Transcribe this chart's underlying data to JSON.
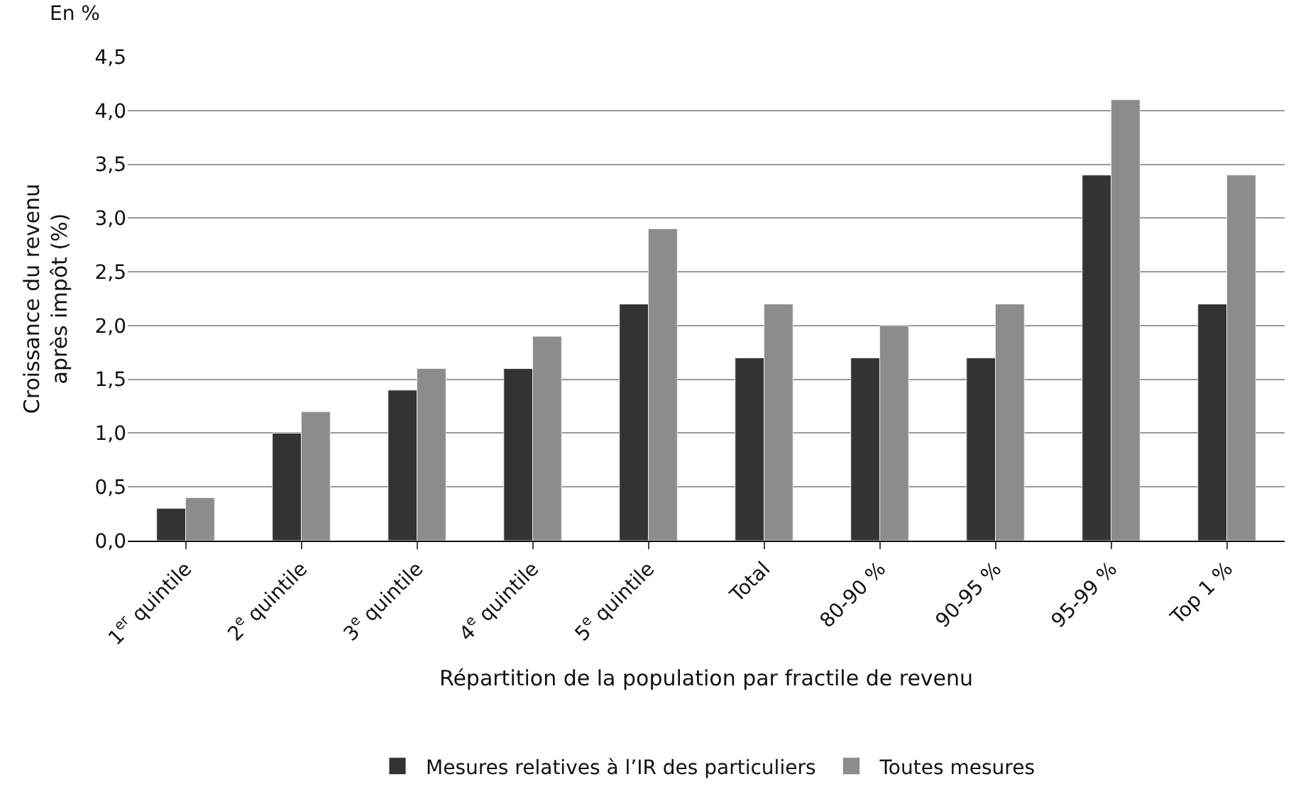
{
  "chart_data": {
    "type": "bar",
    "xlabel": "Répartition de la population par fractile de revenu",
    "ylabel": "Croissance du revenu après impôt (%)",
    "annotations": [
      "En %"
    ],
    "categories": [
      "1$^{er}$ quintile",
      "2$^{e}$ quintile",
      "3$^{e}$ quintile",
      "4$^{e}$ quintile",
      "5$^{e}$ quintile",
      "Total",
      "80-90 %",
      "90-95 %",
      "95-99 %",
      "Top 1 %"
    ],
    "series": [
      {
        "name": "Mesures relatives à l’IR des particuliers",
        "color": "#333333",
        "values": [
          0.3,
          1.0,
          1.4,
          1.6,
          2.2,
          1.7,
          1.7,
          1.7,
          3.4,
          2.2
        ]
      },
      {
        "name": "Toutes mesures",
        "color": "#8c8c8c",
        "values": [
          0.4,
          1.2,
          1.6,
          1.9,
          2.9,
          2.2,
          2.0,
          2.2,
          4.1,
          3.4
        ]
      }
    ],
    "ylim": [
      0,
      4.5
    ],
    "yticks": [
      {
        "value": 0,
        "label": "0,0"
      },
      {
        "value": 0.5,
        "label": "0,5"
      },
      {
        "value": 1,
        "label": "1,0"
      },
      {
        "value": 1.5,
        "label": "1,5"
      },
      {
        "value": 2,
        "label": "2,0"
      },
      {
        "value": 2.5,
        "label": "2,5"
      },
      {
        "value": 3,
        "label": "3,0"
      },
      {
        "value": 3.5,
        "label": "3,5"
      },
      {
        "value": 4,
        "label": "4,0"
      },
      {
        "value": 4.5,
        "label": "4,5"
      }
    ],
    "grid": "y",
    "legend": "bottom"
  }
}
